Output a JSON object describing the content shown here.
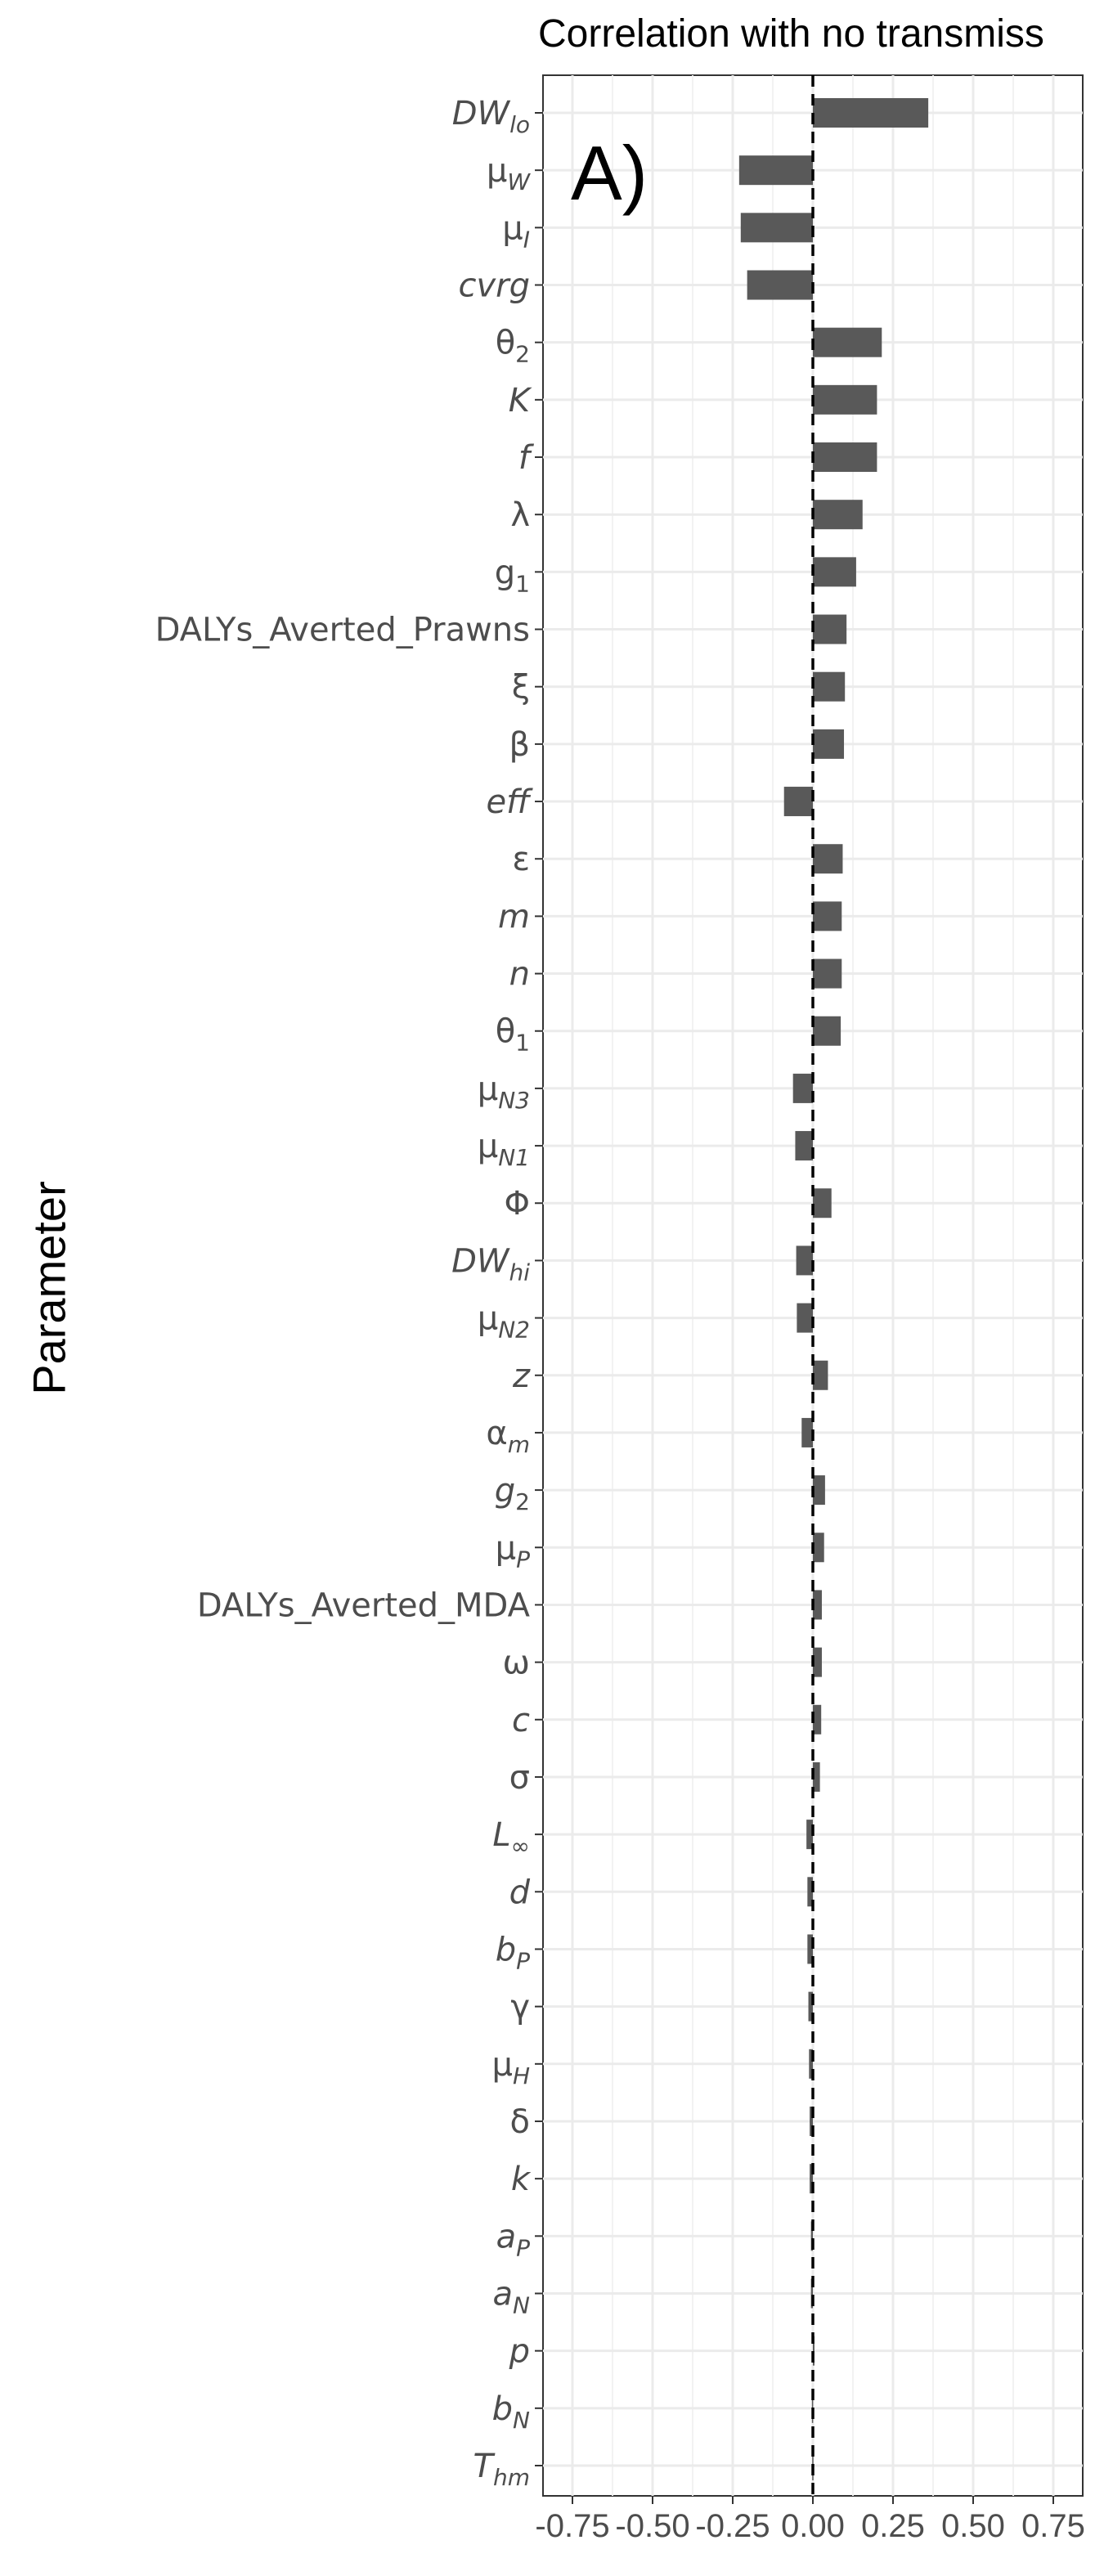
{
  "chart_data": {
    "type": "bar",
    "orientation": "horizontal",
    "title": "Correlation with no transmiss",
    "panel_label": "A)",
    "xlabel": "",
    "ylabel": "Parameter",
    "xlim": [
      -0.75,
      0.75
    ],
    "x_ticks": [
      "-0.75",
      "-0.50",
      "-0.25",
      "0.00",
      "0.25",
      "0.50",
      "0.75"
    ],
    "grid": true,
    "reference_line": {
      "x": 0,
      "style": "dashed"
    },
    "bar_color": "#595959",
    "categories": [
      {
        "label": "DW",
        "sub": "lo",
        "italic": true,
        "subItalic": true
      },
      {
        "label": "μ",
        "sub": "W",
        "italic": false,
        "subItalic": true
      },
      {
        "label": "μ",
        "sub": "I",
        "italic": false,
        "subItalic": true
      },
      {
        "label": "cvrg",
        "sub": "",
        "italic": true,
        "subItalic": false
      },
      {
        "label": "θ",
        "sub": "2",
        "italic": false,
        "subItalic": false
      },
      {
        "label": "K",
        "sub": "",
        "italic": true,
        "subItalic": false
      },
      {
        "label": "f",
        "sub": "",
        "italic": true,
        "subItalic": false
      },
      {
        "label": "λ",
        "sub": "",
        "italic": false,
        "subItalic": false
      },
      {
        "label": "g",
        "sub": "1",
        "italic": false,
        "subItalic": false
      },
      {
        "label": "DALYs_Averted_Prawns",
        "sub": "",
        "italic": false,
        "subItalic": false
      },
      {
        "label": "ξ",
        "sub": "",
        "italic": false,
        "subItalic": false
      },
      {
        "label": "β",
        "sub": "",
        "italic": false,
        "subItalic": false
      },
      {
        "label": "eff",
        "sub": "",
        "italic": true,
        "subItalic": false
      },
      {
        "label": "ε",
        "sub": "",
        "italic": false,
        "subItalic": false
      },
      {
        "label": "m",
        "sub": "",
        "italic": true,
        "subItalic": false
      },
      {
        "label": "n",
        "sub": "",
        "italic": true,
        "subItalic": false
      },
      {
        "label": "θ",
        "sub": "1",
        "italic": false,
        "subItalic": false
      },
      {
        "label": "μ",
        "sub": "N3",
        "italic": false,
        "subItalic": true
      },
      {
        "label": "μ",
        "sub": "N1",
        "italic": false,
        "subItalic": true
      },
      {
        "label": "Φ",
        "sub": "",
        "italic": false,
        "subItalic": false
      },
      {
        "label": "DW",
        "sub": "hi",
        "italic": true,
        "subItalic": true
      },
      {
        "label": "μ",
        "sub": "N2",
        "italic": false,
        "subItalic": true
      },
      {
        "label": "z",
        "sub": "",
        "italic": true,
        "subItalic": false
      },
      {
        "label": "α",
        "sub": "m",
        "italic": false,
        "subItalic": true
      },
      {
        "label": "g",
        "sub": "2",
        "italic": true,
        "subItalic": false
      },
      {
        "label": "μ",
        "sub": "P",
        "italic": false,
        "subItalic": true
      },
      {
        "label": "DALYs_Averted_MDA",
        "sub": "",
        "italic": false,
        "subItalic": false
      },
      {
        "label": "ω",
        "sub": "",
        "italic": false,
        "subItalic": false
      },
      {
        "label": "c",
        "sub": "",
        "italic": true,
        "subItalic": false
      },
      {
        "label": "σ",
        "sub": "",
        "italic": false,
        "subItalic": false
      },
      {
        "label": "L",
        "sub": "∞",
        "italic": true,
        "subItalic": false
      },
      {
        "label": "d",
        "sub": "",
        "italic": true,
        "subItalic": false
      },
      {
        "label": "b",
        "sub": "P",
        "italic": true,
        "subItalic": true
      },
      {
        "label": "γ",
        "sub": "",
        "italic": false,
        "subItalic": false
      },
      {
        "label": "μ",
        "sub": "H",
        "italic": false,
        "subItalic": true
      },
      {
        "label": "δ",
        "sub": "",
        "italic": false,
        "subItalic": false
      },
      {
        "label": "k",
        "sub": "",
        "italic": true,
        "subItalic": false
      },
      {
        "label": "a",
        "sub": "P",
        "italic": true,
        "subItalic": true
      },
      {
        "label": "a",
        "sub": "N",
        "italic": true,
        "subItalic": true
      },
      {
        "label": "p",
        "sub": "",
        "italic": true,
        "subItalic": false
      },
      {
        "label": "b",
        "sub": "N",
        "italic": true,
        "subItalic": true
      },
      {
        "label": "T",
        "sub": "hm",
        "italic": true,
        "subItalic": true
      }
    ],
    "values": [
      0.36,
      -0.23,
      -0.225,
      -0.205,
      0.215,
      0.2,
      0.2,
      0.155,
      0.135,
      0.105,
      0.1,
      0.097,
      -0.09,
      0.093,
      0.09,
      0.09,
      0.087,
      -0.062,
      -0.055,
      0.058,
      -0.052,
      -0.05,
      0.047,
      -0.035,
      0.038,
      0.035,
      0.028,
      0.028,
      0.026,
      0.022,
      -0.02,
      -0.017,
      -0.017,
      -0.014,
      -0.012,
      -0.01,
      -0.01,
      -0.006,
      -0.006,
      0.005,
      -0.003,
      -0.002
    ]
  }
}
